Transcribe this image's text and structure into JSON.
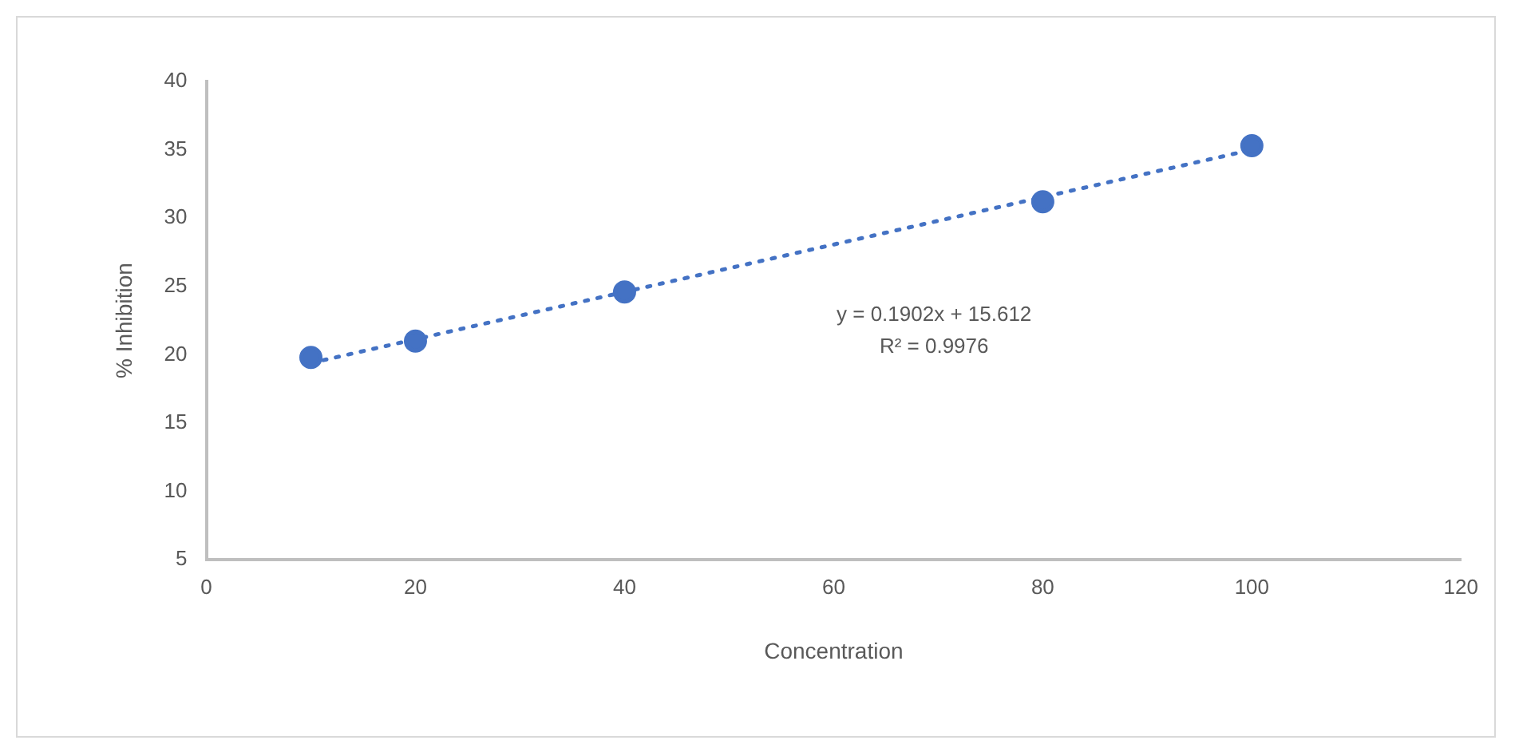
{
  "chart_data": {
    "type": "scatter",
    "xlabel": "Concentration",
    "ylabel": "% Inhibition",
    "xlim": [
      0,
      120
    ],
    "xticks": [
      0,
      20,
      40,
      60,
      80,
      100,
      120
    ],
    "ylim": [
      5,
      40
    ],
    "yticks": [
      5,
      10,
      15,
      20,
      25,
      30,
      35,
      40
    ],
    "grid": false,
    "legend": false,
    "marker": "circle",
    "series": [
      {
        "color": "#4472c4",
        "x": [
          10,
          20,
          40,
          80,
          100
        ],
        "values": [
          19.8,
          21.0,
          24.6,
          31.2,
          35.3
        ]
      },
      {
        "type": "line",
        "color": "#4472c4",
        "line_style": "dotted",
        "marker": "none",
        "x": [
          10,
          100
        ],
        "values": [
          19.4,
          35.0
        ]
      }
    ],
    "annotations": [
      "y = 0.1902x + 15.612",
      "R² = 0.9976"
    ]
  }
}
